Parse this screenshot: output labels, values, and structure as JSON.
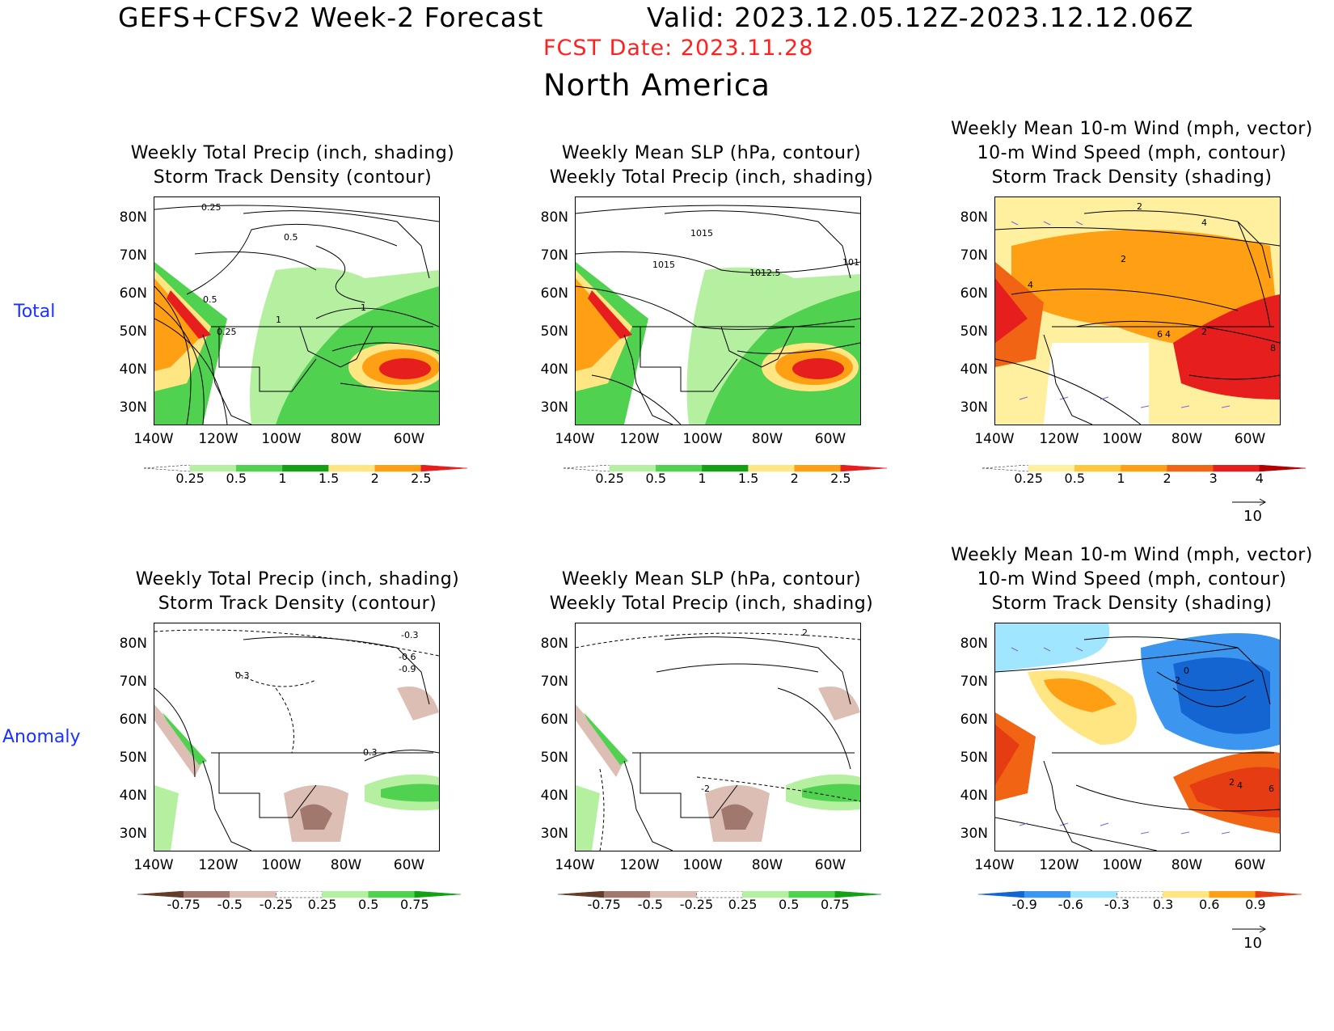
{
  "header": {
    "title": "GEFS+CFSv2 Week-2 Forecast",
    "valid": "Valid: 2023.12.05.12Z-2023.12.12.06Z",
    "fcst_date": "FCST Date: 2023.11.28",
    "region": "North America"
  },
  "rows": {
    "total": "Total",
    "anomaly": "Anomaly"
  },
  "titles": {
    "precip_storm": [
      "Weekly Total Precip (inch, shading)",
      "Storm Track Density (contour)"
    ],
    "slp_precip": [
      "Weekly Mean SLP (hPa, contour)",
      "Weekly Total Precip (inch, shading)"
    ],
    "wind": [
      "Weekly Mean 10-m Wind (mph, vector)",
      "10-m Wind Speed (mph, contour)",
      "Storm Track Density (shading)"
    ]
  },
  "axes": {
    "lat": [
      "80N",
      "70N",
      "60N",
      "50N",
      "40N",
      "30N"
    ],
    "lon": [
      "140W",
      "120W",
      "100W",
      "80W",
      "60W"
    ]
  },
  "colorbars": {
    "precip_total": {
      "labels": [
        "0.25",
        "0.5",
        "1",
        "1.5",
        "2",
        "2.5"
      ],
      "colors": [
        "#ffffff",
        "#b4f0a0",
        "#50d250",
        "#14a014",
        "#ffe682",
        "#ffa014",
        "#e61e1e"
      ]
    },
    "storm_total": {
      "labels": [
        "0.25",
        "0.5",
        "1",
        "2",
        "3",
        "4"
      ],
      "colors": [
        "#ffffff",
        "#fff0a0",
        "#ffc83c",
        "#ffa014",
        "#f06414",
        "#e61e1e",
        "#b40000"
      ]
    },
    "precip_anom": {
      "labels": [
        "-0.75",
        "-0.5",
        "-0.25",
        "0.25",
        "0.5",
        "0.75"
      ],
      "colors": [
        "#643c28",
        "#a0786e",
        "#dcbeb4",
        "#ffffff",
        "#b4f0a0",
        "#50d250",
        "#14a014"
      ]
    },
    "storm_anom": {
      "labels": [
        "-0.9",
        "-0.6",
        "-0.3",
        "0.3",
        "0.6",
        "0.9"
      ],
      "colors": [
        "#1464d2",
        "#3c96f0",
        "#a0e6ff",
        "#ffffff",
        "#ffe682",
        "#ffa014",
        "#e63c14"
      ]
    }
  },
  "vector_ref": "10",
  "contour_labels": {
    "p1": [
      "0.25",
      "0.5",
      "0.5",
      "1",
      "1",
      "0.25"
    ],
    "p2": [
      "1015",
      "1015",
      "1012.5",
      "101"
    ],
    "p3": [
      "2",
      "4",
      "2",
      "6",
      "4",
      "2",
      "8",
      "4"
    ],
    "p4": [
      "-0.3",
      "-0.6",
      "-0.9",
      "0.3",
      "0.3"
    ],
    "p5": [
      "2",
      "-2"
    ],
    "p6": [
      "0",
      "-2",
      "2",
      "4",
      "6"
    ]
  }
}
